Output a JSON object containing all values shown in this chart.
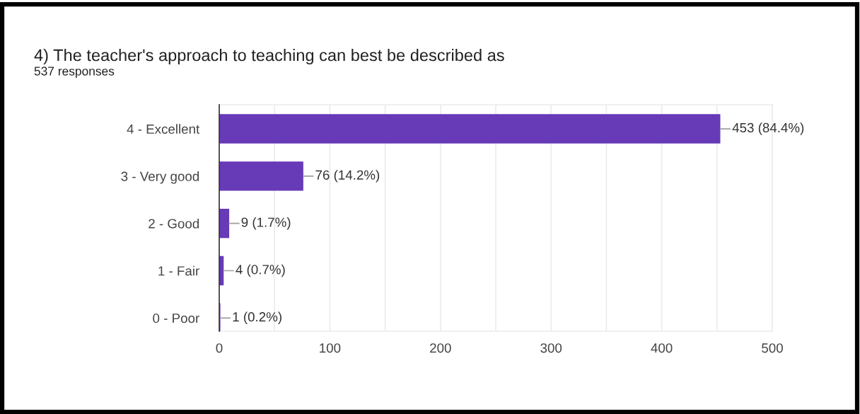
{
  "chart_data": {
    "type": "bar",
    "orientation": "horizontal",
    "title": "4) The teacher's approach to teaching can best be described as",
    "subtitle": "537 responses",
    "categories": [
      "4 - Excellent",
      "3 - Very good",
      "2 - Good",
      "1 - Fair",
      "0 - Poor"
    ],
    "values": [
      453,
      76,
      9,
      4,
      1
    ],
    "value_labels": [
      "453 (84.4%)",
      "76 (14.2%)",
      "9 (1.7%)",
      "4 (0.7%)",
      "1 (0.2%)"
    ],
    "color": "#673ab7",
    "xlim": [
      0,
      500
    ],
    "xticks": [
      0,
      {
        "value": 50,
        "label": null
      },
      100,
      {
        "value": 150,
        "label": null
      },
      200,
      {
        "value": 250,
        "label": null
      },
      300,
      {
        "value": 350,
        "label": null
      },
      400,
      {
        "value": 450,
        "label": null
      },
      500
    ],
    "grid": "x"
  }
}
